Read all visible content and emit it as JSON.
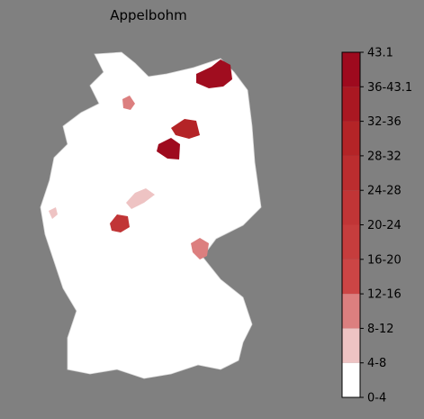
{
  "title": "Appelbohm",
  "legend": {
    "labels": [
      "0-4",
      "4-8",
      "8-12",
      "12-16",
      "16-20",
      "20-24",
      "24-28",
      "28-32",
      "32-36",
      "36-43.1",
      "43.1"
    ],
    "colors": [
      "#ffffff",
      "#eec3c3",
      "#dc7f7f",
      "#cc4545",
      "#c63d3d",
      "#c13536",
      "#bb2d2f",
      "#b42427",
      "#aa1822",
      "#9e0a1e"
    ]
  }
}
